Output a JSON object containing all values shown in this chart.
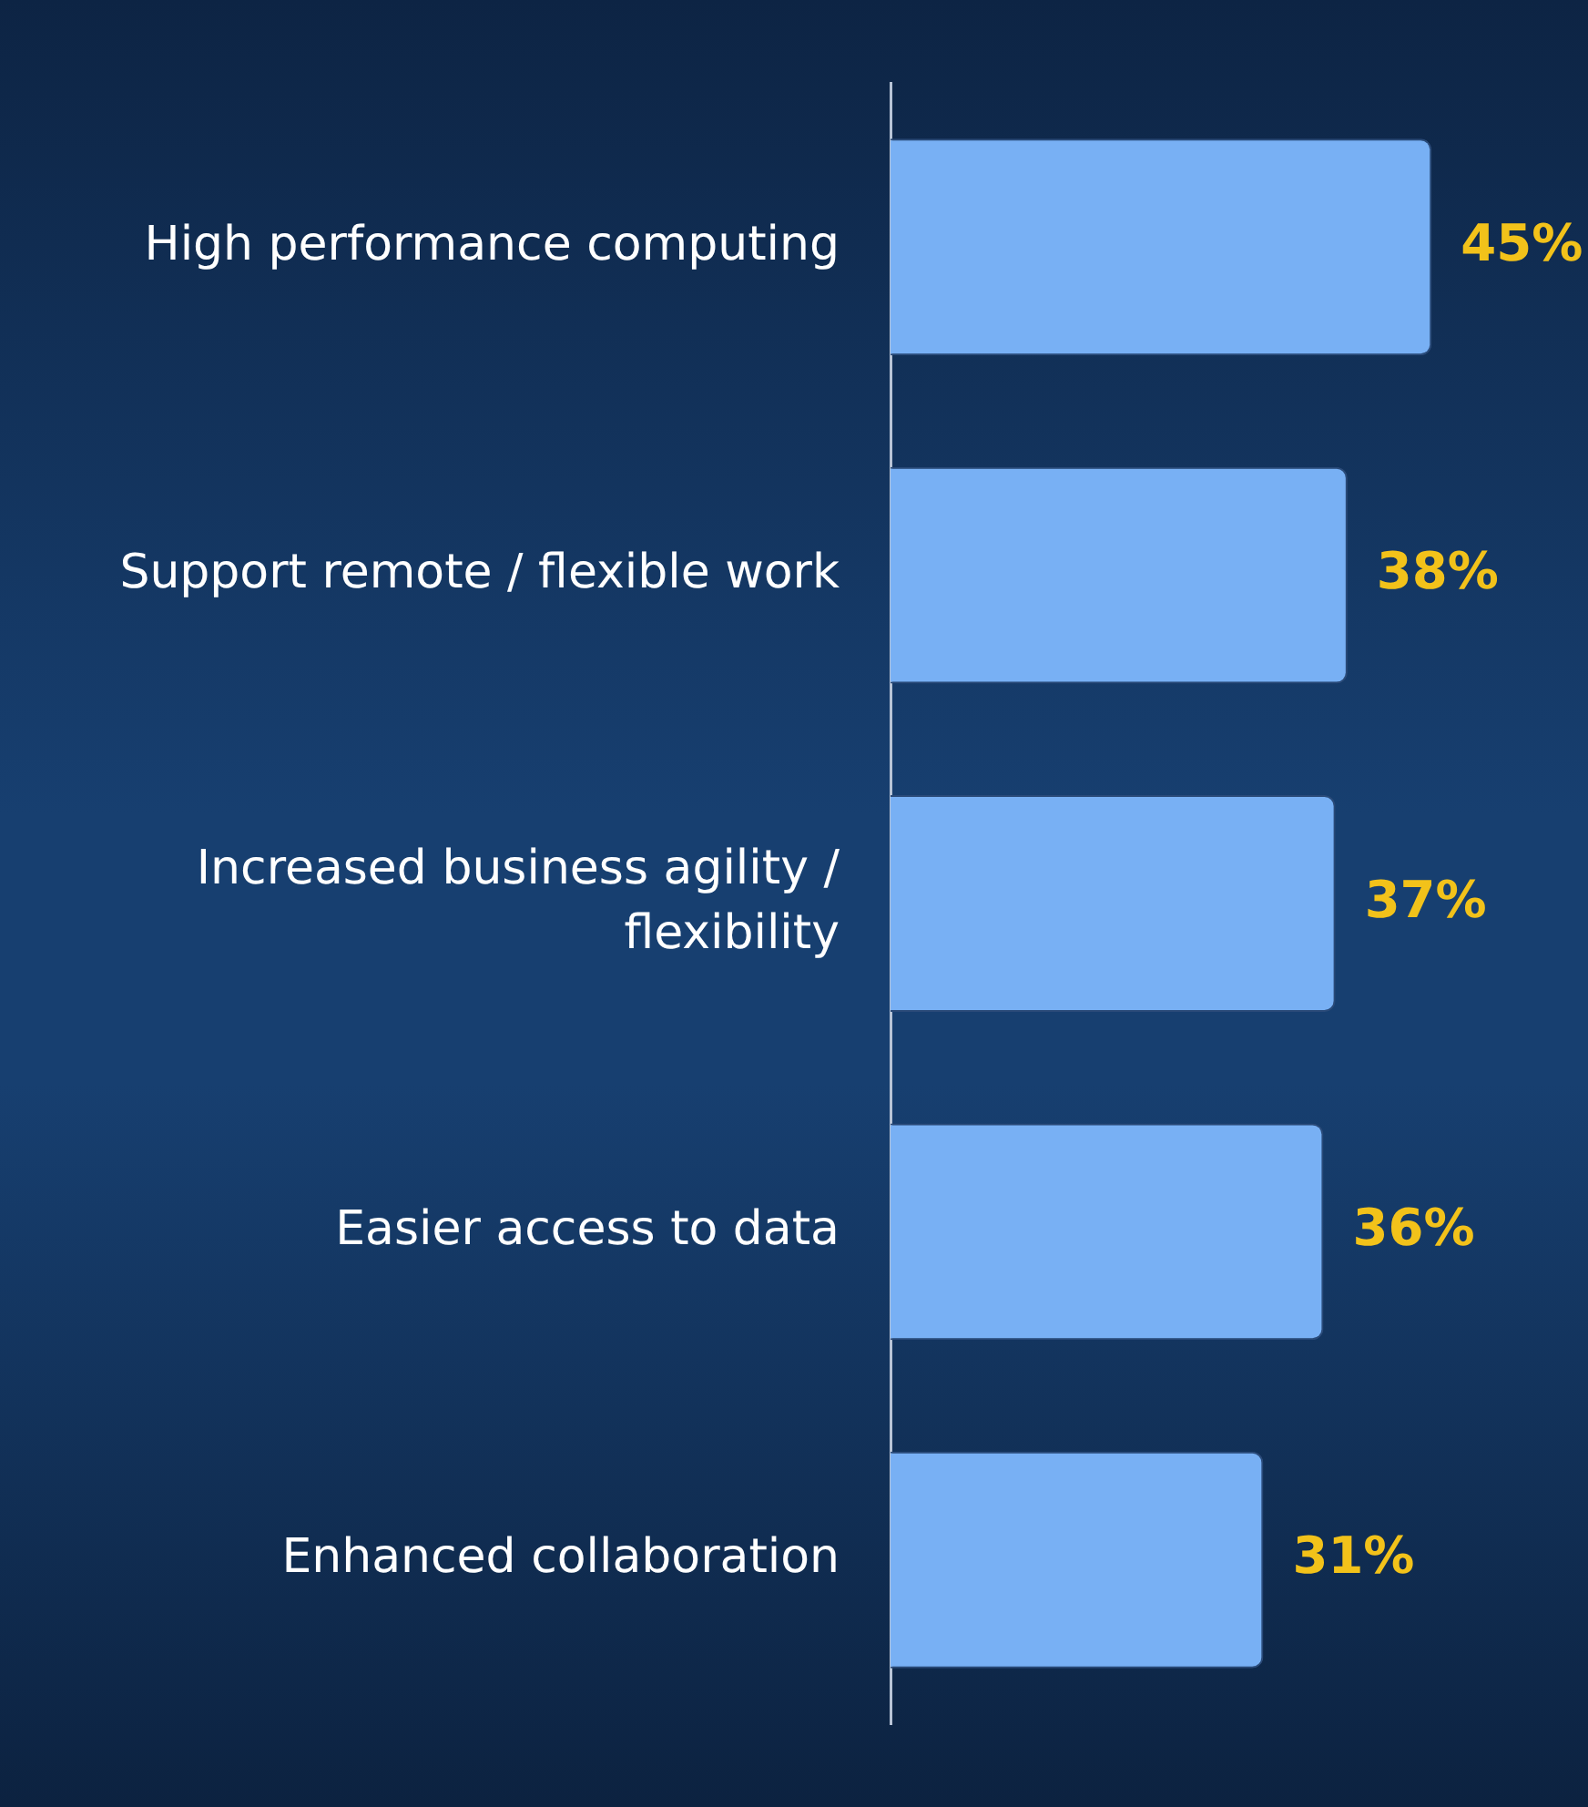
{
  "chart_data": {
    "type": "bar",
    "orientation": "horizontal",
    "categories": [
      "High performance computing",
      "Support remote / flexible work",
      "Increased business agility / flexibility",
      "Easier access to data",
      "Enhanced collaboration"
    ],
    "values": [
      45,
      38,
      37,
      36,
      31
    ],
    "value_labels": [
      "45%",
      "38%",
      "37%",
      "36%",
      "31%"
    ],
    "color": "#78b0f4",
    "xlim": [
      0,
      58
    ],
    "tick_labels": "y",
    "grid": false,
    "legend": false
  }
}
